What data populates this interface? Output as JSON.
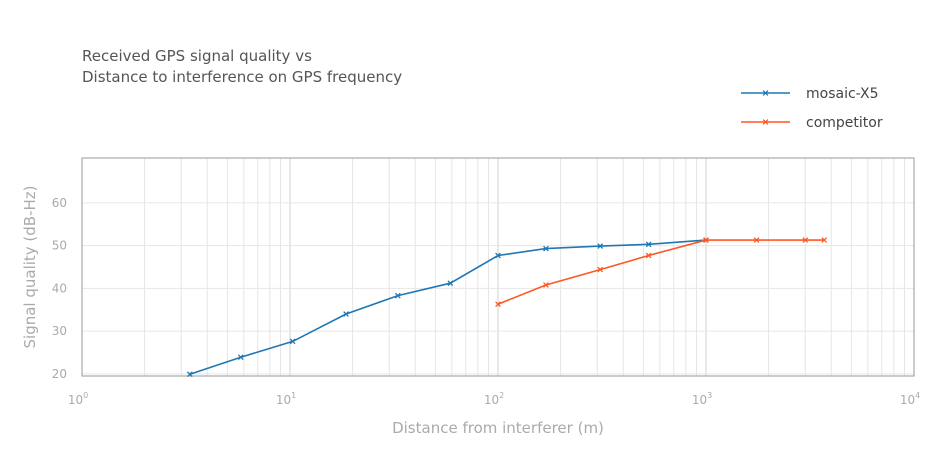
{
  "chart_data": {
    "type": "line",
    "title_lines": [
      "Received GPS signal quality vs",
      "Distance to interference on GPS frequency"
    ],
    "xlabel": "Distance from interferer (m)",
    "ylabel": "Signal quality (dB-Hz)",
    "x_scale": "log",
    "xlim": [
      1,
      10000
    ],
    "ylim": [
      19.5,
      70.5
    ],
    "x_ticks": [
      {
        "value": 1,
        "base": "10",
        "exp": "0"
      },
      {
        "value": 10,
        "base": "10",
        "exp": "1"
      },
      {
        "value": 100,
        "base": "10",
        "exp": "2"
      },
      {
        "value": 1000,
        "base": "10",
        "exp": "3"
      },
      {
        "value": 10000,
        "base": "10",
        "exp": "4"
      }
    ],
    "y_ticks": [
      "20",
      "30",
      "40",
      "50",
      "60"
    ],
    "grid": true,
    "legend_position": "top-right",
    "series": [
      {
        "name": "mosaic-X5",
        "color": "#1f77b4",
        "x": [
          3.3,
          5.8,
          10.3,
          18.6,
          33,
          59,
          100,
          170,
          310,
          530,
          1000
        ],
        "y": [
          19.9,
          23.9,
          27.6,
          34.0,
          38.3,
          41.2,
          47.7,
          49.3,
          49.9,
          50.3,
          51.3
        ]
      },
      {
        "name": "competitor",
        "color": "#ff5722",
        "x": [
          100,
          170,
          310,
          530,
          1000,
          1750,
          3000,
          3700
        ],
        "y": [
          36.3,
          40.8,
          44.4,
          47.7,
          51.3,
          51.3,
          51.3,
          51.3
        ]
      }
    ]
  }
}
